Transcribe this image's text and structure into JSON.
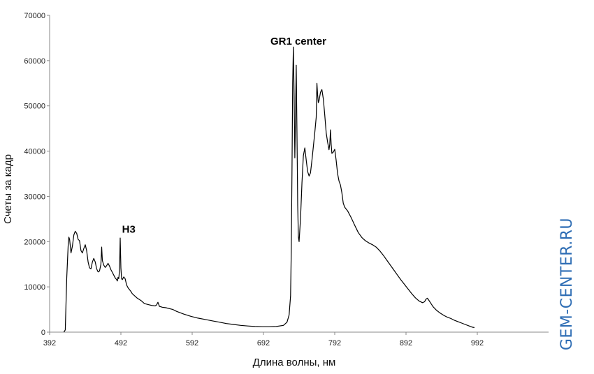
{
  "chart_data": {
    "type": "line",
    "title": "",
    "xlabel": "Длина волны, нм",
    "ylabel": "Счеты за кадр",
    "xlim": [
      392,
      1092
    ],
    "ylim": [
      0,
      70000
    ],
    "x_ticks": [
      392,
      492,
      592,
      692,
      792,
      892,
      992
    ],
    "y_ticks": [
      0,
      10000,
      20000,
      30000,
      40000,
      50000,
      60000,
      70000
    ],
    "grid": false,
    "line_color": "#000000",
    "annotations": [
      {
        "text": "H3",
        "x": 503,
        "y": 22000
      },
      {
        "text": "GR1 center",
        "x": 741,
        "y": 63500
      }
    ],
    "series": [
      {
        "points": [
          [
            412,
            0
          ],
          [
            414,
            500
          ],
          [
            416,
            12000
          ],
          [
            418,
            19000
          ],
          [
            419,
            21000
          ],
          [
            420,
            20500
          ],
          [
            422,
            17500
          ],
          [
            424,
            19000
          ],
          [
            426,
            21500
          ],
          [
            428,
            22300
          ],
          [
            430,
            21800
          ],
          [
            432,
            20500
          ],
          [
            434,
            20200
          ],
          [
            436,
            18000
          ],
          [
            438,
            17500
          ],
          [
            440,
            18500
          ],
          [
            442,
            19300
          ],
          [
            444,
            18000
          ],
          [
            446,
            15500
          ],
          [
            448,
            14200
          ],
          [
            450,
            14000
          ],
          [
            452,
            15500
          ],
          [
            454,
            16300
          ],
          [
            456,
            15500
          ],
          [
            458,
            14000
          ],
          [
            460,
            13300
          ],
          [
            462,
            13500
          ],
          [
            464,
            15000
          ],
          [
            465,
            18800
          ],
          [
            466,
            15800
          ],
          [
            468,
            14800
          ],
          [
            470,
            14300
          ],
          [
            472,
            14700
          ],
          [
            474,
            15200
          ],
          [
            476,
            14600
          ],
          [
            478,
            13800
          ],
          [
            480,
            13200
          ],
          [
            482,
            12600
          ],
          [
            484,
            12000
          ],
          [
            486,
            11600
          ],
          [
            487,
            11300
          ],
          [
            488,
            12100
          ],
          [
            489,
            11800
          ],
          [
            490,
            13500
          ],
          [
            491,
            20800
          ],
          [
            492,
            14200
          ],
          [
            493,
            11800
          ],
          [
            494,
            11600
          ],
          [
            496,
            12200
          ],
          [
            498,
            11800
          ],
          [
            500,
            10400
          ],
          [
            502,
            9800
          ],
          [
            504,
            9400
          ],
          [
            506,
            9000
          ],
          [
            508,
            8500
          ],
          [
            510,
            8200
          ],
          [
            515,
            7500
          ],
          [
            520,
            7000
          ],
          [
            525,
            6300
          ],
          [
            530,
            6100
          ],
          [
            535,
            5900
          ],
          [
            540,
            5800
          ],
          [
            542,
            6000
          ],
          [
            544,
            6600
          ],
          [
            546,
            5700
          ],
          [
            550,
            5500
          ],
          [
            555,
            5400
          ],
          [
            560,
            5200
          ],
          [
            565,
            5000
          ],
          [
            570,
            4600
          ],
          [
            580,
            4000
          ],
          [
            590,
            3500
          ],
          [
            600,
            3100
          ],
          [
            610,
            2800
          ],
          [
            620,
            2500
          ],
          [
            630,
            2200
          ],
          [
            640,
            1900
          ],
          [
            650,
            1700
          ],
          [
            660,
            1500
          ],
          [
            670,
            1350
          ],
          [
            680,
            1250
          ],
          [
            690,
            1200
          ],
          [
            700,
            1200
          ],
          [
            710,
            1250
          ],
          [
            720,
            1500
          ],
          [
            725,
            2200
          ],
          [
            728,
            3800
          ],
          [
            730,
            8000
          ],
          [
            731,
            18000
          ],
          [
            732,
            35000
          ],
          [
            733,
            55000
          ],
          [
            734,
            63000
          ],
          [
            735,
            52000
          ],
          [
            736,
            38500
          ],
          [
            737,
            48000
          ],
          [
            738,
            59000
          ],
          [
            739,
            45000
          ],
          [
            740,
            28000
          ],
          [
            741,
            21000
          ],
          [
            742,
            20000
          ],
          [
            744,
            25000
          ],
          [
            746,
            33000
          ],
          [
            748,
            39000
          ],
          [
            750,
            40700
          ],
          [
            752,
            38000
          ],
          [
            754,
            35500
          ],
          [
            756,
            34500
          ],
          [
            758,
            35200
          ],
          [
            760,
            38000
          ],
          [
            762,
            41000
          ],
          [
            764,
            44000
          ],
          [
            766,
            47500
          ],
          [
            767,
            55000
          ],
          [
            768,
            52500
          ],
          [
            769,
            50700
          ],
          [
            770,
            51200
          ],
          [
            772,
            53000
          ],
          [
            774,
            53600
          ],
          [
            776,
            51500
          ],
          [
            778,
            48000
          ],
          [
            780,
            44000
          ],
          [
            782,
            42000
          ],
          [
            784,
            40300
          ],
          [
            785,
            41500
          ],
          [
            786,
            44700
          ],
          [
            787,
            41500
          ],
          [
            788,
            39500
          ],
          [
            790,
            39800
          ],
          [
            792,
            40400
          ],
          [
            794,
            38000
          ],
          [
            796,
            35000
          ],
          [
            798,
            33400
          ],
          [
            800,
            32500
          ],
          [
            802,
            30800
          ],
          [
            804,
            28500
          ],
          [
            806,
            27600
          ],
          [
            810,
            26800
          ],
          [
            815,
            25300
          ],
          [
            820,
            23600
          ],
          [
            825,
            22000
          ],
          [
            830,
            20900
          ],
          [
            835,
            20200
          ],
          [
            840,
            19700
          ],
          [
            845,
            19300
          ],
          [
            850,
            18800
          ],
          [
            855,
            18000
          ],
          [
            860,
            17000
          ],
          [
            865,
            15900
          ],
          [
            870,
            14800
          ],
          [
            875,
            13700
          ],
          [
            880,
            12600
          ],
          [
            885,
            11500
          ],
          [
            890,
            10500
          ],
          [
            895,
            9500
          ],
          [
            900,
            8500
          ],
          [
            905,
            7600
          ],
          [
            910,
            6900
          ],
          [
            915,
            6500
          ],
          [
            918,
            6700
          ],
          [
            920,
            7300
          ],
          [
            922,
            7500
          ],
          [
            925,
            6800
          ],
          [
            930,
            5600
          ],
          [
            935,
            4800
          ],
          [
            940,
            4200
          ],
          [
            945,
            3700
          ],
          [
            950,
            3300
          ],
          [
            955,
            3000
          ],
          [
            960,
            2600
          ],
          [
            965,
            2300
          ],
          [
            970,
            2000
          ],
          [
            975,
            1700
          ],
          [
            980,
            1400
          ],
          [
            985,
            1100
          ],
          [
            988,
            1000
          ]
        ]
      }
    ]
  },
  "watermark": {
    "text": "GEM-CENTER.RU",
    "color": "#2e6db4"
  }
}
